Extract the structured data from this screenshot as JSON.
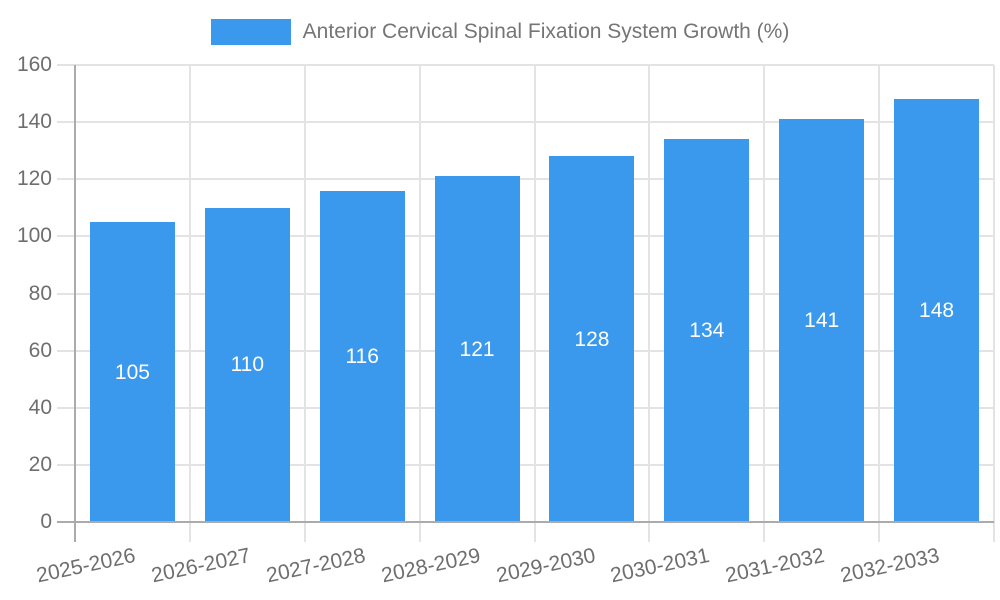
{
  "legend": {
    "label": "Anterior Cervical Spinal Fixation System Growth (%)"
  },
  "chart_data": {
    "type": "bar",
    "title": "Anterior Cervical Spinal Fixation System Growth (%)",
    "categories": [
      "2025-2026",
      "2026-2027",
      "2027-2028",
      "2028-2029",
      "2029-2030",
      "2030-2031",
      "2031-2032",
      "2032-2033"
    ],
    "values": [
      105,
      110,
      116,
      121,
      128,
      134,
      141,
      148
    ],
    "xlabel": "",
    "ylabel": "",
    "ylim": [
      0,
      160
    ],
    "yticks": [
      0,
      20,
      40,
      60,
      80,
      100,
      120,
      140,
      160
    ],
    "grid": true,
    "legend_position": "top-center",
    "value_label_position": "inside-center",
    "x_tick_rotation_deg": -12,
    "colors": {
      "bar": "#3A99EC",
      "grid": "#E3E3E3",
      "axis": "#ABABAB",
      "axis_text": "#6E6E6E",
      "legend_text": "#757575",
      "value_label": "#FFFFFF",
      "background": "#FFFFFF"
    }
  }
}
